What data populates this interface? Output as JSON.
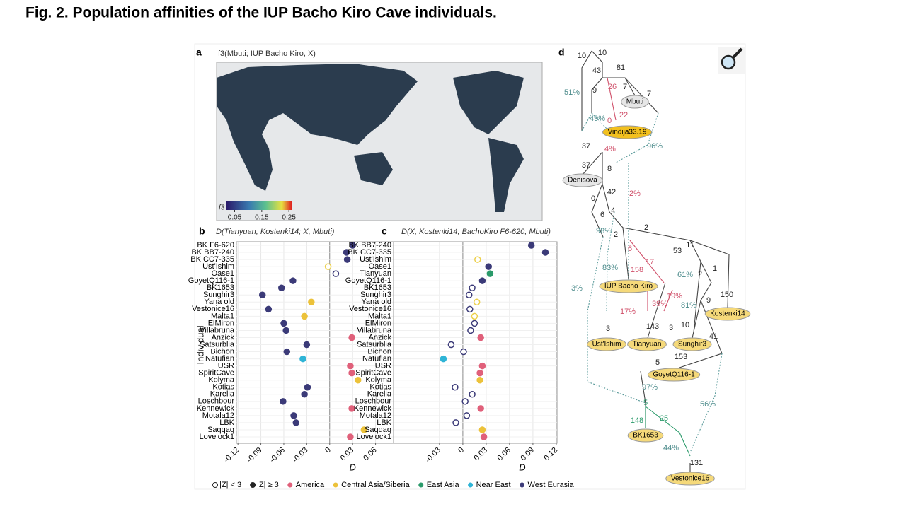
{
  "header": {
    "title": "Fig. 2. Population affinities of the IUP Bacho Kiro Cave individuals."
  },
  "panel_a": {
    "label": "a",
    "title": "f3(Mbuti; IUP Bacho Kiro, X)",
    "colorbar": {
      "label": "f3",
      "lim": [
        0.02,
        0.26
      ],
      "ticks": [
        0.05,
        0.15,
        0.25
      ]
    }
  },
  "chart_data": [
    {
      "type": "dot",
      "label": "b",
      "title": "D(Tianyuan, Kostenki14; X, Mbuti)",
      "x_label": "D",
      "y_label": "Individual",
      "categories": [
        "BK F6-620",
        "BK BB7-240",
        "BK CC7-335",
        "Ust'Ishim",
        "Oase1",
        "GoyetQ116-1",
        "BK1653",
        "Sunghir3",
        "Yana old",
        "Vestonice16",
        "Malta1",
        "ElMiron",
        "Villabruna",
        "Anzick",
        "Satsurblia",
        "Bichon",
        "Natufian",
        "USR",
        "SpiritCave",
        "Kolyma",
        "Kotias",
        "Karelia",
        "Loschbour",
        "Kennewick",
        "Motala12",
        "LBK",
        "Saqqaq",
        "Lovelock1"
      ],
      "values": [
        0.03,
        0.022,
        0.023,
        -0.002,
        0.008,
        -0.048,
        -0.063,
        -0.088,
        -0.024,
        -0.08,
        -0.033,
        -0.06,
        -0.057,
        0.029,
        -0.03,
        -0.056,
        -0.035,
        0.027,
        0.029,
        0.037,
        -0.029,
        -0.033,
        -0.061,
        0.029,
        -0.047,
        -0.044,
        0.045,
        0.027
      ],
      "colors": [
        "#3b3a78",
        "#3b3a78",
        "#3b3a78",
        "#ecd04a",
        "#3b3a78",
        "#3b3a78",
        "#3b3a78",
        "#3b3a78",
        "#ecc23a",
        "#3b3a78",
        "#ecc23a",
        "#3b3a78",
        "#3b3a78",
        "#e0607a",
        "#3b3a78",
        "#3b3a78",
        "#2fb4d6",
        "#e0607a",
        "#e0607a",
        "#ecc23a",
        "#3b3a78",
        "#3b3a78",
        "#3b3a78",
        "#e0607a",
        "#3b3a78",
        "#3b3a78",
        "#ecc23a",
        "#e0607a"
      ],
      "filled": [
        true,
        true,
        true,
        false,
        false,
        true,
        true,
        true,
        true,
        true,
        true,
        true,
        true,
        true,
        true,
        true,
        true,
        true,
        true,
        true,
        true,
        true,
        true,
        true,
        true,
        true,
        true,
        true
      ],
      "xlim": [
        -0.122,
        0.103
      ],
      "xticks": [
        -0.12,
        -0.09,
        -0.06,
        -0.03,
        0,
        0.03,
        0.06
      ],
      "grid": true
    },
    {
      "type": "dot",
      "label": "c",
      "title": "D(X, Kostenki14; BachoKiro F6-620, Mbuti)",
      "x_label": "D",
      "categories": [
        "BK BB7-240",
        "BK CC7-335",
        "Ust'Ishim",
        "Oase1",
        "Tianyuan",
        "GoyetQ116-1",
        "BK1653",
        "Sunghir3",
        "Yana old",
        "Vestonice16",
        "Malta1",
        "ElMiron",
        "Villabruna",
        "Anzick",
        "Satsurblia",
        "Bichon",
        "Natufian",
        "USR",
        "SpiritCave",
        "Kolyma",
        "Kotias",
        "Karelia",
        "Loschbour",
        "Kennewick",
        "Motala12",
        "LBK",
        "Saqqaq",
        "Lovelock1"
      ],
      "values": [
        0.088,
        0.106,
        0.019,
        0.033,
        0.035,
        0.025,
        0.012,
        0.008,
        0.018,
        0.009,
        0.015,
        0.015,
        0.01,
        0.023,
        -0.015,
        0.001,
        -0.025,
        0.025,
        0.022,
        0.022,
        -0.01,
        0.012,
        0.003,
        0.023,
        0.005,
        -0.009,
        0.025,
        0.027
      ],
      "colors": [
        "#3b3a78",
        "#3b3a78",
        "#ecd04a",
        "#3b3a78",
        "#2a9a6a",
        "#3b3a78",
        "#3b3a78",
        "#3b3a78",
        "#ecd04a",
        "#3b3a78",
        "#ecd04a",
        "#3b3a78",
        "#3b3a78",
        "#e0607a",
        "#3b3a78",
        "#3b3a78",
        "#2fb4d6",
        "#e0607a",
        "#e0607a",
        "#ecc23a",
        "#3b3a78",
        "#3b3a78",
        "#3b3a78",
        "#e0607a",
        "#3b3a78",
        "#3b3a78",
        "#ecc23a",
        "#e0607a"
      ],
      "filled": [
        true,
        true,
        false,
        true,
        true,
        true,
        false,
        false,
        false,
        false,
        false,
        false,
        false,
        true,
        false,
        false,
        true,
        true,
        true,
        true,
        false,
        false,
        false,
        true,
        false,
        false,
        true,
        true
      ],
      "xlim": [
        -0.089,
        0.121
      ],
      "xticks": [
        -0.03,
        0,
        0.03,
        0.06,
        0.09,
        0.12
      ],
      "grid": true
    }
  ],
  "legend": {
    "significance": [
      "|Z| < 3",
      "|Z| ≥ 3"
    ],
    "groups": [
      {
        "name": "America",
        "color": "#e0607a"
      },
      {
        "name": "Central Asia/Siberia",
        "color": "#ecc23a"
      },
      {
        "name": "East Asia",
        "color": "#2a9a6a"
      },
      {
        "name": "Near East",
        "color": "#2fb4d6"
      },
      {
        "name": "West Eurasia",
        "color": "#3b3a78"
      }
    ]
  },
  "panel_d": {
    "label": "d",
    "nodes": [
      "Mbuti",
      "Vindija33.19",
      "Denisova",
      "IUP Bacho Kiro",
      "Kostenki14",
      "Ust'Ishim",
      "Tianyuan",
      "Sunghir3",
      "GoyetQ116-1",
      "BK1653",
      "Vestonice16"
    ],
    "edge_labels": [
      "10",
      "10",
      "43",
      "81",
      "51%",
      "9",
      "26",
      "7",
      "7",
      "49%",
      "0",
      "22",
      "37",
      "4%",
      "96%",
      "37",
      "8",
      "42",
      "2%",
      "0",
      "6",
      "4",
      "98%",
      "2",
      "2",
      "11",
      "53",
      "6",
      "17",
      "83%",
      "158",
      "61%",
      "2",
      "1",
      "3%",
      "150",
      "19%",
      "9",
      "39%",
      "81%",
      "17%",
      "10",
      "3",
      "143",
      "3",
      "41",
      "153",
      "5",
      "97%",
      "56%",
      "5",
      "148",
      "25",
      "44%",
      "131"
    ]
  }
}
